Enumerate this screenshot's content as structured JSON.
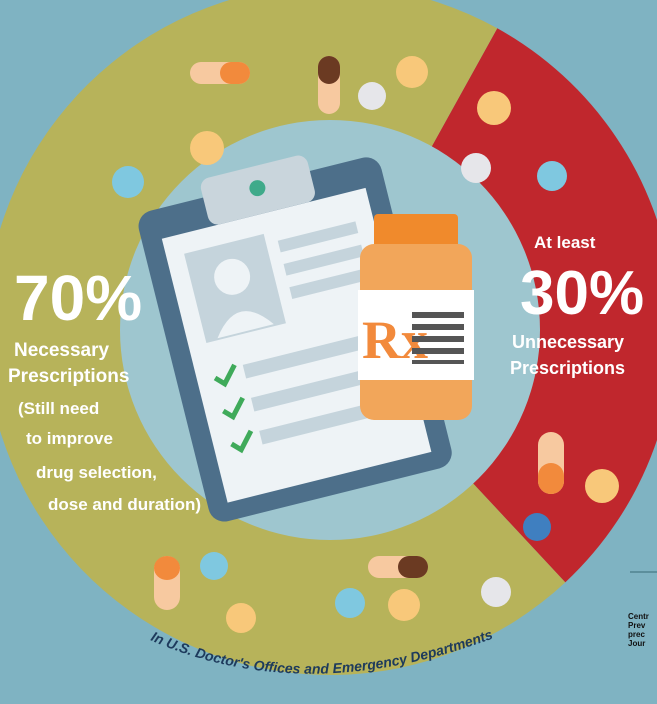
{
  "colors": {
    "background": "#7fb3c2",
    "necessary": "#b7b35a",
    "unnecessary": "#c0272d",
    "inner": "#9ec6cf",
    "clipboard": "#4d6f8a",
    "bottle": "#f2a65a",
    "rx": "#f28a3c"
  },
  "chart_data": {
    "type": "pie",
    "slices": [
      {
        "label": "Necessary Prescriptions",
        "value": 70,
        "color": "#b7b35a"
      },
      {
        "label": "Unnecessary Prescriptions",
        "value": 30,
        "color": "#c0272d"
      }
    ],
    "left": {
      "pct": "70%",
      "line1": "Necessary",
      "line2": "Prescriptions",
      "note1": "(Still need",
      "note2": "to improve",
      "note3": "drug selection,",
      "note4": "dose and duration)"
    },
    "right": {
      "pre": "At least",
      "pct": "30%",
      "line1": "Unnecessary",
      "line2": "Prescriptions"
    },
    "arc_caption": "In U.S. Doctor's Offices and Emergency Departments",
    "source_lines": [
      "Centr",
      "Prev",
      "prec",
      "Jour"
    ]
  },
  "icons": [
    "clipboard-icon",
    "prescription-bottle-icon",
    "rx-symbol-icon",
    "checkmark-icon",
    "pill-capsule-icon",
    "pill-tablet-icon"
  ]
}
